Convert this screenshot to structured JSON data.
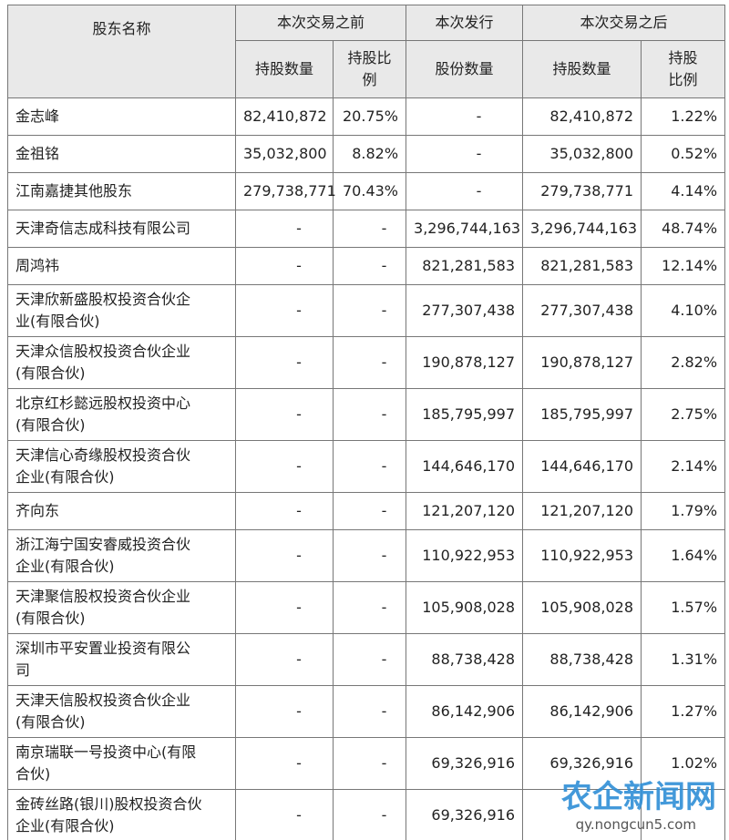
{
  "table": {
    "header": {
      "row1": [
        "股东名称",
        "本次交易之前",
        "本次发行",
        "本次交易之后"
      ],
      "row2": [
        "持股数量",
        "持股比\n例",
        "股份数量",
        "持股数量",
        "持股\n比例"
      ]
    },
    "rows": [
      [
        "金志峰",
        "82,410,872",
        "20.75%",
        "-",
        "82,410,872",
        "1.22%"
      ],
      [
        "金祖铭",
        "35,032,800",
        "8.82%",
        "-",
        "35,032,800",
        "0.52%"
      ],
      [
        "江南嘉捷其他股东",
        "279,738,771",
        "70.43%",
        "-",
        "279,738,771",
        "4.14%"
      ],
      [
        "天津奇信志成科技有限公司",
        "-",
        "-",
        "3,296,744,163",
        "3,296,744,163",
        "48.74%"
      ],
      [
        "周鸿祎",
        "-",
        "-",
        "821,281,583",
        "821,281,583",
        "12.14%"
      ],
      [
        "天津欣新盛股权投资合伙企\n业(有限合伙)",
        "-",
        "-",
        "277,307,438",
        "277,307,438",
        "4.10%"
      ],
      [
        "天津众信股权投资合伙企业\n(有限合伙)",
        "-",
        "-",
        "190,878,127",
        "190,878,127",
        "2.82%"
      ],
      [
        "北京红杉懿远股权投资中心\n(有限合伙)",
        "-",
        "-",
        "185,795,997",
        "185,795,997",
        "2.75%"
      ],
      [
        "天津信心奇缘股权投资合伙\n企业(有限合伙)",
        "-",
        "-",
        "144,646,170",
        "144,646,170",
        "2.14%"
      ],
      [
        "齐向东",
        "-",
        "-",
        "121,207,120",
        "121,207,120",
        "1.79%"
      ],
      [
        "浙江海宁国安睿威投资合伙\n企业(有限合伙)",
        "-",
        "-",
        "110,922,953",
        "110,922,953",
        "1.64%"
      ],
      [
        "天津聚信股权投资合伙企业\n(有限合伙)",
        "-",
        "-",
        "105,908,028",
        "105,908,028",
        "1.57%"
      ],
      [
        "深圳市平安置业投资有限公\n司",
        "-",
        "-",
        "88,738,428",
        "88,738,428",
        "1.31%"
      ],
      [
        "天津天信股权投资合伙企业\n(有限合伙)",
        "-",
        "-",
        "86,142,906",
        "86,142,906",
        "1.27%"
      ],
      [
        "南京瑞联一号投资中心(有限\n合伙)",
        "-",
        "-",
        "69,326,916",
        "69,326,916",
        "1.02%"
      ],
      [
        "金砖丝路(银川)股权投资合伙\n企业(有限合伙)",
        "-",
        "-",
        "69,326,916",
        null,
        null
      ]
    ]
  },
  "watermark": {
    "logo": "农企新闻网",
    "url": "qy.nongcun5.com"
  }
}
